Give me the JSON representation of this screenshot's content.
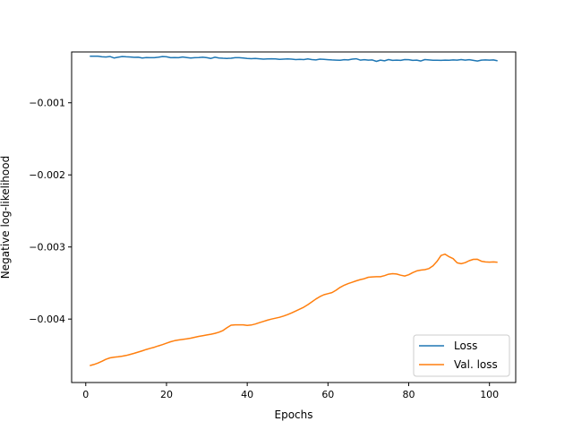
{
  "chart_data": {
    "type": "line",
    "title": "",
    "xlabel": "Epochs",
    "ylabel": "Negative log-likelihood",
    "xlim": [
      -3.5,
      106.5
    ],
    "ylim": [
      -0.00488,
      -0.000295
    ],
    "xticks": [
      0,
      20,
      40,
      60,
      80,
      100
    ],
    "xtick_labels": [
      "0",
      "20",
      "40",
      "60",
      "80",
      "100"
    ],
    "yticks": [
      -0.001,
      -0.002,
      -0.003,
      -0.004
    ],
    "ytick_labels": [
      "−0.001",
      "−0.002",
      "−0.003",
      "−0.004"
    ],
    "grid": false,
    "legend_position": "lower-right",
    "series": [
      {
        "name": "Loss",
        "color": "#1f77b4",
        "x": [
          1,
          2,
          3,
          4,
          5,
          6,
          7,
          8,
          9,
          10,
          11,
          12,
          13,
          14,
          15,
          16,
          17,
          18,
          19,
          20,
          21,
          22,
          23,
          24,
          25,
          26,
          27,
          28,
          29,
          30,
          31,
          32,
          33,
          34,
          35,
          36,
          37,
          38,
          39,
          40,
          41,
          42,
          43,
          44,
          45,
          46,
          47,
          48,
          49,
          50,
          51,
          52,
          53,
          54,
          55,
          56,
          57,
          58,
          59,
          60,
          61,
          62,
          63,
          64,
          65,
          66,
          67,
          68,
          69,
          70,
          71,
          72,
          73,
          74,
          75,
          76,
          77,
          78,
          79,
          80,
          81,
          82,
          83,
          84,
          85,
          86,
          87,
          88,
          89,
          90,
          91,
          92,
          93,
          94,
          95,
          96,
          97,
          98,
          99,
          100,
          101,
          102
        ],
        "values": [
          -0.000355,
          -0.000353,
          -0.000355,
          -0.000362,
          -0.000365,
          -0.000358,
          -0.000378,
          -0.000368,
          -0.000358,
          -0.000362,
          -0.000365,
          -0.00037,
          -0.000368,
          -0.000378,
          -0.000372,
          -0.000375,
          -0.000375,
          -0.000368,
          -0.000358,
          -0.000362,
          -0.000375,
          -0.000372,
          -0.000375,
          -0.000365,
          -0.000372,
          -0.000378,
          -0.000375,
          -0.000372,
          -0.000368,
          -0.000375,
          -0.000385,
          -0.000368,
          -0.000378,
          -0.000382,
          -0.000385,
          -0.000382,
          -0.000375,
          -0.000375,
          -0.00038,
          -0.000385,
          -0.000388,
          -0.000385,
          -0.00039,
          -0.000395,
          -0.000392,
          -0.00039,
          -0.000392,
          -0.000398,
          -0.000395,
          -0.000392,
          -0.000395,
          -0.0004,
          -0.000398,
          -0.0004,
          -0.000392,
          -0.0004,
          -0.000405,
          -0.000395,
          -0.000398,
          -0.000402,
          -0.000405,
          -0.000408,
          -0.00041,
          -0.000402,
          -0.000405,
          -0.000395,
          -0.00039,
          -0.000408,
          -0.000402,
          -0.000408,
          -0.000405,
          -0.000425,
          -0.000408,
          -0.000418,
          -0.0004,
          -0.000412,
          -0.000408,
          -0.000412,
          -0.0004,
          -0.000402,
          -0.000412,
          -0.000408,
          -0.00042,
          -0.0004,
          -0.000405,
          -0.00041,
          -0.00041,
          -0.000412,
          -0.000408,
          -0.00041,
          -0.000405,
          -0.000408,
          -0.0004,
          -0.000408,
          -0.000402,
          -0.000412,
          -0.00042,
          -0.000408,
          -0.000405,
          -0.000408,
          -0.000405,
          -0.000418
        ]
      },
      {
        "name": "Val. loss",
        "color": "#ff7f0e",
        "x": [
          1,
          2,
          3,
          4,
          5,
          6,
          7,
          8,
          9,
          10,
          11,
          12,
          13,
          14,
          15,
          16,
          17,
          18,
          19,
          20,
          21,
          22,
          23,
          24,
          25,
          26,
          27,
          28,
          29,
          30,
          31,
          32,
          33,
          34,
          35,
          36,
          37,
          38,
          39,
          40,
          41,
          42,
          43,
          44,
          45,
          46,
          47,
          48,
          49,
          50,
          51,
          52,
          53,
          54,
          55,
          56,
          57,
          58,
          59,
          60,
          61,
          62,
          63,
          64,
          65,
          66,
          67,
          68,
          69,
          70,
          71,
          72,
          73,
          74,
          75,
          76,
          77,
          78,
          79,
          80,
          81,
          82,
          83,
          84,
          85,
          86,
          87,
          88,
          89,
          90,
          91,
          92,
          93,
          94,
          95,
          96,
          97,
          98,
          99,
          100,
          101,
          102
        ],
        "values": [
          -0.004645,
          -0.00463,
          -0.00461,
          -0.004585,
          -0.004558,
          -0.004538,
          -0.004528,
          -0.004522,
          -0.004515,
          -0.004505,
          -0.00449,
          -0.004475,
          -0.004458,
          -0.00444,
          -0.004422,
          -0.004405,
          -0.00439,
          -0.004372,
          -0.004355,
          -0.004335,
          -0.004315,
          -0.0043,
          -0.00429,
          -0.004282,
          -0.004275,
          -0.004265,
          -0.004252,
          -0.00424,
          -0.00423,
          -0.00422,
          -0.00421,
          -0.004198,
          -0.004182,
          -0.004158,
          -0.00412,
          -0.004085,
          -0.00408,
          -0.00408,
          -0.00408,
          -0.004088,
          -0.004082,
          -0.004068,
          -0.00405,
          -0.004032,
          -0.004015,
          -0.004,
          -0.003988,
          -0.003975,
          -0.003958,
          -0.003938,
          -0.003915,
          -0.003888,
          -0.003862,
          -0.003835,
          -0.0038,
          -0.003762,
          -0.003722,
          -0.003688,
          -0.003662,
          -0.003648,
          -0.003632,
          -0.0036,
          -0.00356,
          -0.00353,
          -0.003508,
          -0.00349,
          -0.00347,
          -0.003452,
          -0.00344,
          -0.00342,
          -0.003415,
          -0.003412,
          -0.003412,
          -0.003398,
          -0.003378,
          -0.00337,
          -0.003375,
          -0.003392,
          -0.003402,
          -0.003385,
          -0.003355,
          -0.003332,
          -0.00332,
          -0.003315,
          -0.0033,
          -0.003262,
          -0.0032,
          -0.003118,
          -0.0031,
          -0.003135,
          -0.003162,
          -0.00322,
          -0.003232,
          -0.003218,
          -0.00319,
          -0.003172,
          -0.00317,
          -0.003198,
          -0.003208,
          -0.00321,
          -0.003208,
          -0.003212
        ]
      }
    ]
  }
}
